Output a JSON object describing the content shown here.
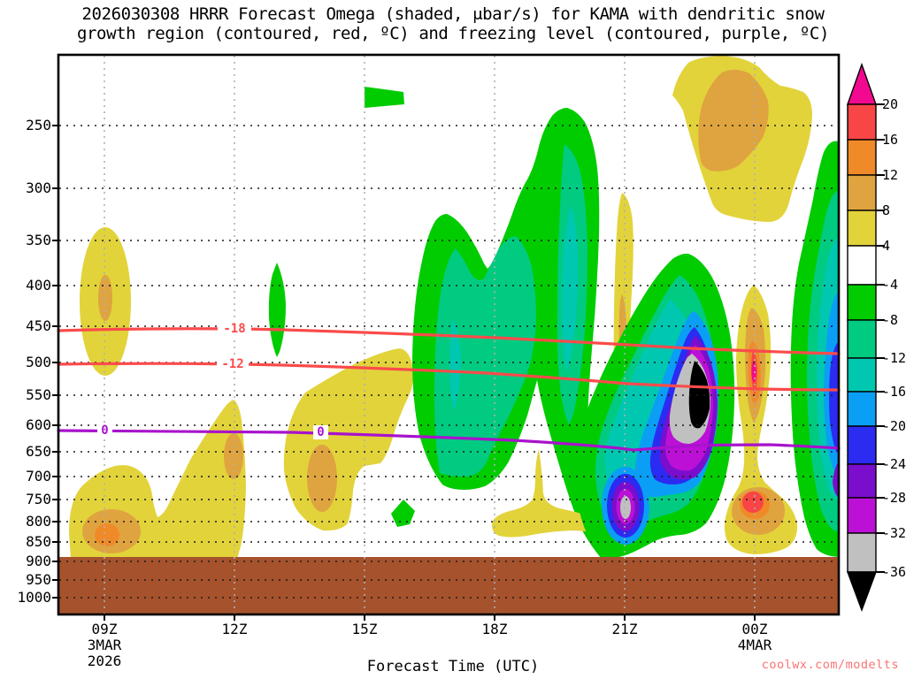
{
  "title": {
    "line1": "2026030308 HRRR Forecast Omega (shaded, μbar/s) for KAMA with dendritic snow",
    "line2": "growth region (contoured, red, ºC) and freezing level (contoured, purple, ºC)"
  },
  "y_axis": {
    "unit": "hPa",
    "labels": [
      "250",
      "300",
      "350",
      "400",
      "450",
      "500",
      "550",
      "600",
      "650",
      "700",
      "750",
      "800",
      "850",
      "900",
      "950",
      "1000"
    ]
  },
  "x_axis": {
    "labels": [
      "09Z",
      "12Z",
      "15Z",
      "18Z",
      "21Z",
      "00Z"
    ],
    "date1_line1": "3MAR",
    "date1_line2": "2026",
    "date2": "4MAR",
    "title": "Forecast Time (UTC)"
  },
  "colorbar": {
    "labels": [
      "20",
      "16",
      "12",
      "8",
      "4",
      "-4",
      "-8",
      "-12",
      "-16",
      "-20",
      "-24",
      "-28",
      "-32",
      "-36"
    ]
  },
  "contour_labels": {
    "red_upper": "-18",
    "red_lower": "-12",
    "freezing_left": "0",
    "freezing_mid": "0"
  },
  "watermark": "coolwx.com/modelts",
  "colors": {
    "y4": "#e2d33b",
    "y8": "#dfa43f",
    "y12": "#f08a28",
    "y16": "#f94545",
    "y20": "#f2098f",
    "g4": "#00cc00",
    "g8": "#00cb80",
    "g12": "#00c7b0",
    "g16": "#0a9ff5",
    "g20": "#2b2bf2",
    "g24": "#7a0ecc",
    "g28": "#bc10d6",
    "g32": "#c0c0c0",
    "g36": "#000000",
    "white": "#ffffff",
    "terrain_brown": "#a5522d",
    "contour_red": "#fb4b4b",
    "contour_purple": "#a812cc",
    "watermark_red": "#f97373",
    "grid_horizontal": "#1a1a1a",
    "grid_vertical": "#b0b0b0",
    "axis_black": "#000000"
  },
  "chart_data": {
    "type": "heatmap",
    "description": "Time-height cross section of HRRR forecast omega (filled contours, ubar/s) over KAMA, pressure 250-1000 hPa (log scale) vs forecast time 08Z 3MAR 2026 to ~02Z 4MAR 2026. Brown band below ~905 hPa is below-ground terrain.",
    "x_ticks_utc": [
      "09Z",
      "12Z",
      "15Z",
      "18Z",
      "21Z",
      "00Z"
    ],
    "y_ticks_hpa": [
      250,
      300,
      350,
      400,
      450,
      500,
      550,
      600,
      650,
      700,
      750,
      800,
      850,
      900,
      950,
      1000
    ],
    "shading_levels_ubar_per_s": [
      -36,
      -32,
      -28,
      -24,
      -20,
      -16,
      -12,
      -8,
      -4,
      4,
      8,
      12,
      16,
      20
    ],
    "colorbar_range": [
      -36,
      20
    ],
    "contours": [
      {
        "name": "dendritic growth region",
        "color": "red",
        "levels_c": [
          -18,
          -12
        ],
        "approx_pressure_hpa": [
          440,
          520
        ],
        "slope": "slightly descending with time"
      },
      {
        "name": "freezing level",
        "color": "purple",
        "levels_c": [
          0
        ],
        "approx_pressure_hpa": [
          610,
          625
        ]
      }
    ],
    "notable_features": [
      {
        "feature": "subsidence max ~8-12 near 09Z 400-420 hPa",
        "value_ubar_per_s": 10
      },
      {
        "feature": "low-level subsidence core near 09Z 820 hPa",
        "value_ubar_per_s": 14
      },
      {
        "feature": "deep ascent column 17Z-20Z, 250-600 hPa",
        "value_ubar_per_s": -16
      },
      {
        "feature": "extreme ascent core ~22-23Z 420-500 hPa (black/gray fill)",
        "value_ubar_per_s": -38
      },
      {
        "feature": "secondary ascent core ~21Z 750-800 hPa",
        "value_ubar_per_s": -33
      },
      {
        "feature": "strong descent couplet at 00Z 420-450 hPa and 780 hPa",
        "value_ubar_per_s": 20
      },
      {
        "feature": "upper-level subsidence blob 23Z-01Z 200-300 hPa",
        "value_ubar_per_s": 10
      },
      {
        "feature": "ascent column at right edge ~01-02Z",
        "value_ubar_per_s": -26
      }
    ],
    "legend_position": "right",
    "grid": true
  }
}
